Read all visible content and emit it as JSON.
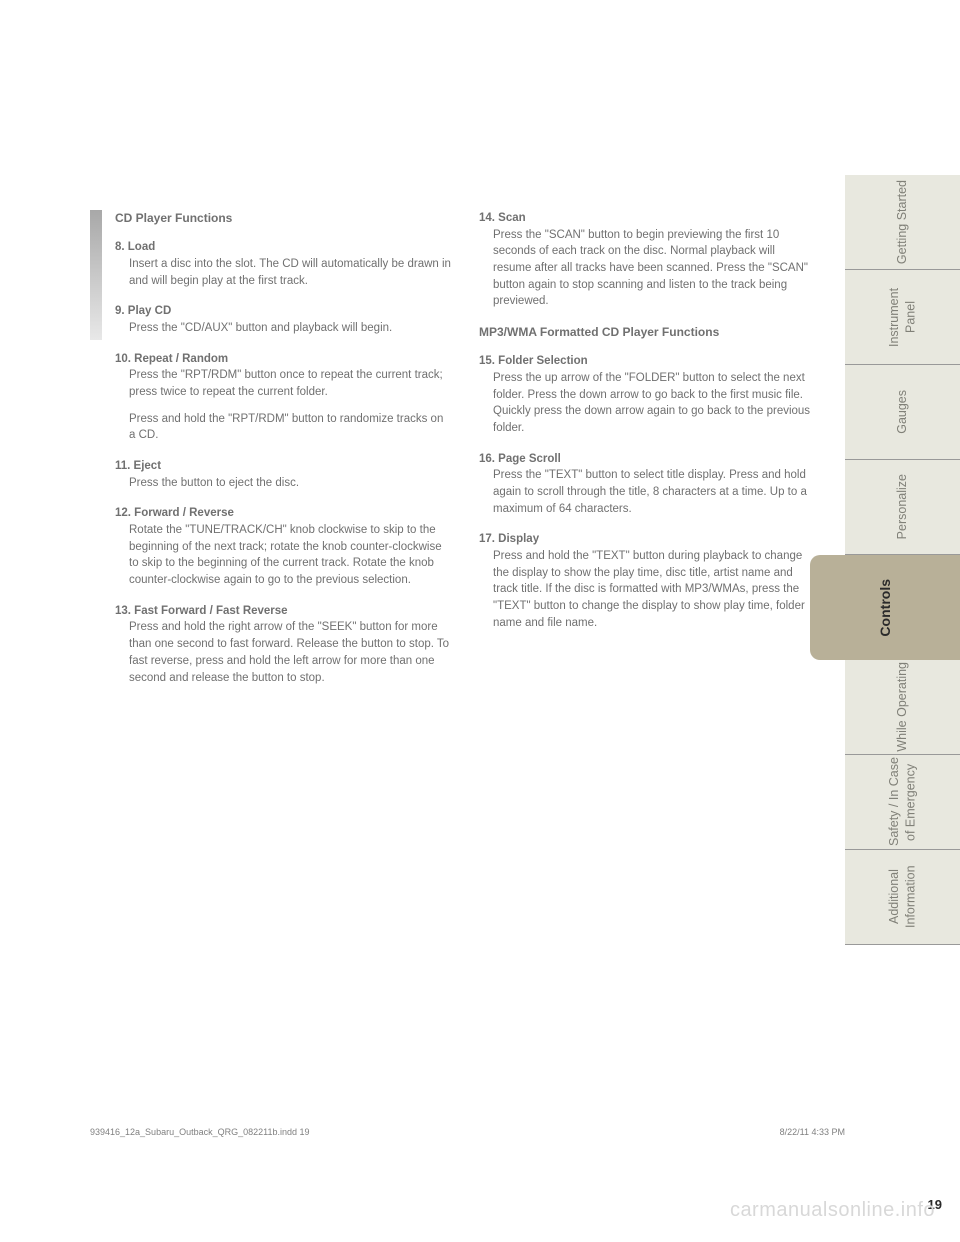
{
  "section1_title": "CD Player Functions",
  "section2_title": "MP3/WMA Formatted CD Player Functions",
  "items": {
    "i8_head": "8. Load",
    "i8_body": "Insert a disc into the slot. The CD will automatically be drawn in and will begin play at the first track.",
    "i9_head": "9. Play CD",
    "i9_body": "Press the \"CD/AUX\" button and playback will begin.",
    "i10_head": "10. Repeat / Random",
    "i10_body": "Press the \"RPT/RDM\" button once to repeat the current track; press twice to repeat the current folder.",
    "i10_body2": "Press and hold the \"RPT/RDM\" button to randomize tracks on a CD.",
    "i11_head": "11. Eject",
    "i11_body": "Press the button to eject the disc.",
    "i12_head": "12. Forward / Reverse",
    "i12_body": "Rotate the \"TUNE/TRACK/CH\" knob clockwise to skip to the beginning of the next track; rotate the knob counter-clockwise to skip to the beginning of the current track. Rotate the knob counter-clockwise again to go to the previous selection.",
    "i13_head": "13. Fast Forward / Fast Reverse",
    "i13_body": "Press and hold the right arrow of the \"SEEK\" button for more than one second to fast forward. Release the button to stop. To fast reverse, press and hold the left arrow for more than one second and release the button to stop.",
    "i14_head": "14. Scan",
    "i14_body": "Press the \"SCAN\" button to begin previewing the first 10 seconds of each track on the disc. Normal playback will resume after all tracks have been scanned. Press the \"SCAN\" button again to stop scanning and listen to the track being previewed.",
    "i15_head": "15. Folder Selection",
    "i15_body": "Press the up arrow of the \"FOLDER\" button to select the next folder. Press the down arrow to go back to the first music file. Quickly press the down arrow again to go back to the previous folder.",
    "i16_head": "16. Page Scroll",
    "i16_body": "Press the \"TEXT\" button to select title display. Press and hold again to scroll through the title, 8 characters at a time. Up to a maximum of 64 characters.",
    "i17_head": "17. Display",
    "i17_body": "Press and hold the \"TEXT\" button during playback to change the display to show the play time, disc title, artist name and track title. If the disc is formatted with MP3/WMAs, press the \"TEXT\" button to change the display to show play time, folder name and file name."
  },
  "tabs": {
    "t1": "Getting\nStarted",
    "t2": "Instrument\nPanel",
    "t3": "Gauges",
    "t4": "Personalize",
    "t5": "Controls",
    "t6": "While\nOperating",
    "t7": "Safety / In Case\nof Emergency",
    "t8": "Additional\nInformation"
  },
  "page_number": "19",
  "footer_left": "939416_12a_Subaru_Outback_QRG_082211b.indd   19",
  "footer_right": "8/22/11   4:33 PM",
  "watermark": "carmanualsonline.info"
}
